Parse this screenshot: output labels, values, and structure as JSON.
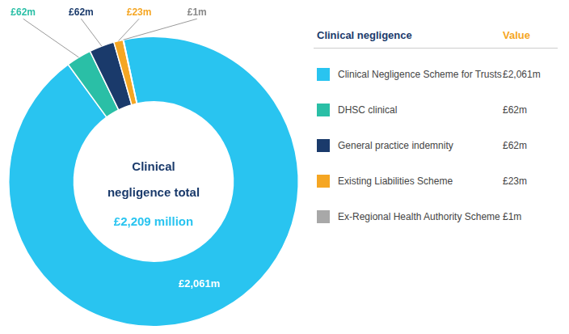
{
  "chart_data": {
    "type": "doughnut",
    "title": [
      "Clinical",
      "negligence total",
      "£2,209 million"
    ],
    "categories": [
      "Clinical Negligence Scheme for Trusts",
      "DHSC clinical",
      "General practice indemnity",
      "Existing Liabilities Scheme",
      "Ex-Regional Health Authority Scheme"
    ],
    "values": [
      2061,
      62,
      62,
      23,
      1
    ],
    "value_labels": [
      "£2,061m",
      "£62m",
      "£62m",
      "£23m",
      "£1m"
    ],
    "colors": [
      "#29C4F0",
      "#2ABFA6",
      "#1A3A6B",
      "#F5A623",
      "#A8A8A8"
    ],
    "data_labels": true,
    "legend": "right",
    "legend_headers": [
      "Clinical negligence",
      "Value"
    ]
  }
}
